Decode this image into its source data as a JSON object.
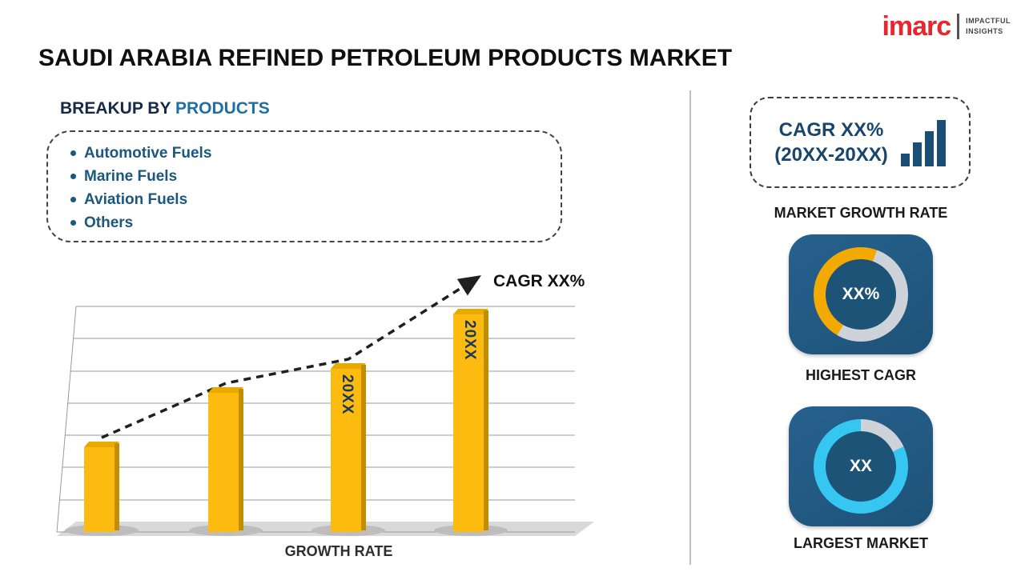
{
  "logo": {
    "brand": "imarc",
    "brand_color": "#e8262d",
    "tagline": [
      "IMPACTFUL",
      "INSIGHTS"
    ]
  },
  "title": "SAUDI ARABIA REFINED PETROLEUM PRODUCTS MARKET",
  "breakup": {
    "heading_prefix": "BREAKUP BY ",
    "heading_highlight": "PRODUCTS",
    "items": [
      "Automotive Fuels",
      "Marine Fuels",
      "Aviation Fuels",
      "Others"
    ]
  },
  "chart_data": {
    "type": "bar",
    "categories": [
      "",
      "",
      "",
      ""
    ],
    "values": [
      28,
      46,
      54,
      72
    ],
    "bar_labels": [
      "",
      "",
      "20XX",
      "20XX"
    ],
    "trend_annotation": "CAGR XX%",
    "xlabel": "GROWTH RATE",
    "ylim": [
      0,
      100
    ],
    "grid": true,
    "legend": false
  },
  "sidebar": {
    "growth_card": {
      "line1": "CAGR XX%",
      "line2": "(20XX-20XX)",
      "caption": "MARKET GROWTH RATE"
    },
    "highest_cagr": {
      "value": "XX%",
      "caption": "HIGHEST CAGR",
      "accent_color": "#f2a900",
      "ring_start_deg": 210,
      "ring_coverage_deg": 170
    },
    "largest_market": {
      "value": "XX",
      "caption": "LARGEST MARKET",
      "accent_color": "#35c7f2",
      "ring_start_deg": 65,
      "ring_coverage_deg": 295
    }
  },
  "colors": {
    "bar_front": "#fdbb10",
    "bar_side": "#c18e00",
    "bar_top": "#e7ab00",
    "navy_tile": "#1e5378",
    "ring_track": "#cdd3d8",
    "text_blue": "#1b577e",
    "heading_dark": "#142a47",
    "heading_blue": "#1f6fa5",
    "card_navy": "#17456b"
  }
}
